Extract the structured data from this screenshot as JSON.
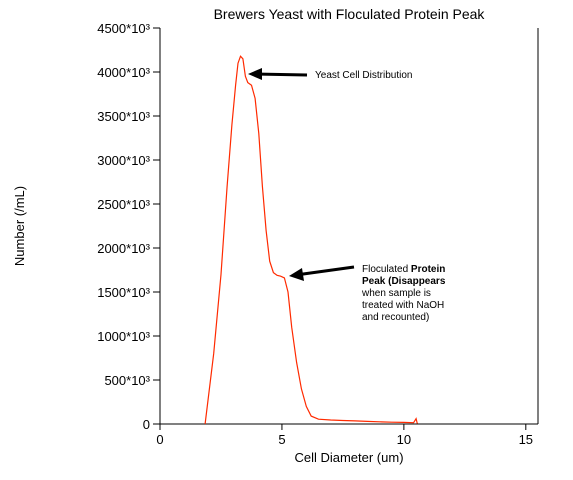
{
  "chart_data": {
    "type": "line",
    "title": "Brewers Yeast with Floculated Protein Peak",
    "xlabel": "Cell Diameter (um)",
    "ylabel": "Number (/mL)",
    "xlim": [
      0,
      15.5
    ],
    "ylim": [
      0,
      4500
    ],
    "x_ticks": [
      0,
      5,
      10,
      15
    ],
    "y_ticks": [
      0,
      500,
      1000,
      1500,
      2000,
      2500,
      3000,
      3500,
      4000,
      4500
    ],
    "y_tick_labels": [
      "0",
      "500*10³",
      "1000*10³",
      "1500*10³",
      "2000*10³",
      "2500*10³",
      "3000*10³",
      "3500*10³",
      "4000*10³",
      "4500*10³"
    ],
    "grid": false,
    "line_color": "#ff2a00",
    "series": [
      {
        "x": [
          1.85,
          2.2,
          2.5,
          2.75,
          2.95,
          3.1,
          3.2,
          3.3,
          3.4,
          3.5,
          3.6,
          3.75,
          3.9,
          4.05,
          4.2,
          4.35,
          4.5,
          4.65,
          4.8,
          4.95,
          5.1,
          5.25,
          5.4,
          5.6,
          5.8,
          6.0,
          6.2,
          6.5,
          7.0,
          7.5,
          8.0,
          8.5,
          9.0,
          9.5,
          10.0,
          10.4,
          10.5,
          10.55
        ],
        "y": [
          0,
          800,
          1700,
          2700,
          3400,
          3850,
          4100,
          4180,
          4150,
          3950,
          3880,
          3850,
          3700,
          3300,
          2700,
          2200,
          1850,
          1720,
          1690,
          1680,
          1660,
          1500,
          1100,
          700,
          400,
          200,
          90,
          55,
          45,
          40,
          35,
          30,
          25,
          20,
          18,
          15,
          60,
          5
        ]
      }
    ],
    "annotations": [
      {
        "text_lines": [
          [
            "Yeast Cell Distribution",
            ""
          ]
        ],
        "point_to": [
          3.55,
          4000
        ]
      },
      {
        "text_lines": [
          [
            "Floculated ",
            "Protein"
          ],
          [
            "Peak (Disappears",
            ""
          ],
          [
            "when sample is",
            ""
          ],
          [
            "treated with NaOH",
            ""
          ],
          [
            "and recounted)",
            ""
          ]
        ],
        "point_to": [
          5.3,
          1700
        ]
      }
    ]
  }
}
